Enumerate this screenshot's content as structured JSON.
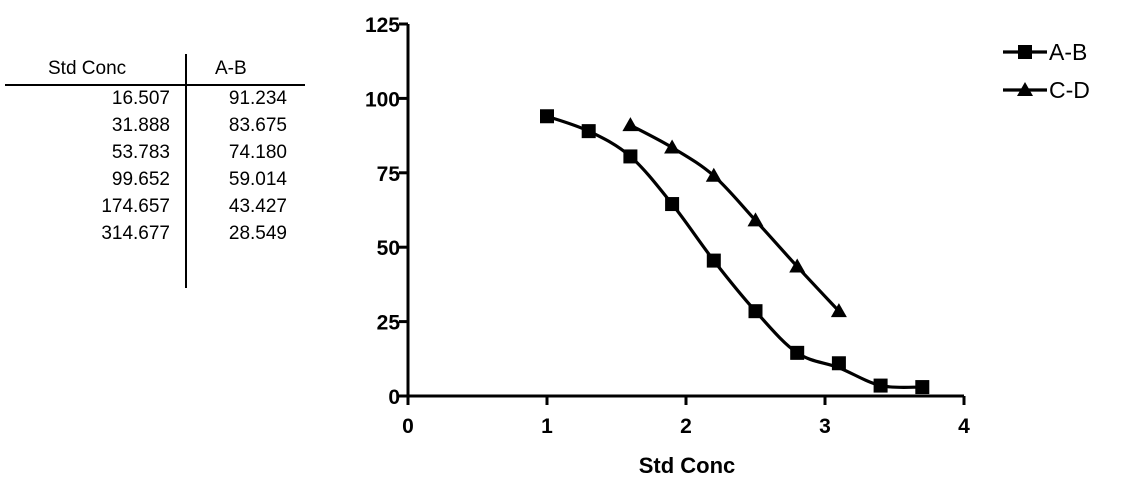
{
  "table": {
    "headers": [
      "Std Conc",
      "A-B"
    ],
    "rows": [
      [
        "16.507",
        "91.234"
      ],
      [
        "31.888",
        "83.675"
      ],
      [
        "53.783",
        "74.180"
      ],
      [
        "99.652",
        "59.014"
      ],
      [
        "174.657",
        "43.427"
      ],
      [
        "314.677",
        "28.549"
      ]
    ]
  },
  "chart_data": {
    "type": "line",
    "title": "",
    "xlabel": "Std Conc",
    "ylabel": "",
    "xlim": [
      0,
      4
    ],
    "ylim": [
      0,
      125
    ],
    "xticks": [
      "0",
      "1",
      "2",
      "3",
      "4"
    ],
    "yticks": [
      "0",
      "25",
      "50",
      "75",
      "100",
      "125"
    ],
    "legend": "top-right",
    "grid": false,
    "series": [
      {
        "name": "A-B",
        "marker": "square",
        "color": "#000000",
        "x": [
          1.0,
          1.3,
          1.6,
          1.9,
          2.2,
          2.5,
          2.8,
          3.1,
          3.4,
          3.7
        ],
        "y": [
          94,
          89,
          80.5,
          64.5,
          45.5,
          28.5,
          14.5,
          11,
          3.5,
          3
        ],
        "curve_y": [
          94,
          89,
          80.5,
          64.5,
          45.5,
          28.5,
          14.5,
          9.5,
          3.5,
          3
        ]
      },
      {
        "name": "C-D",
        "marker": "triangle",
        "color": "#000000",
        "x": [
          1.6,
          1.9,
          2.2,
          2.5,
          2.8,
          3.1
        ],
        "y": [
          91,
          83.5,
          74,
          59,
          43.5,
          28.5
        ]
      }
    ]
  }
}
